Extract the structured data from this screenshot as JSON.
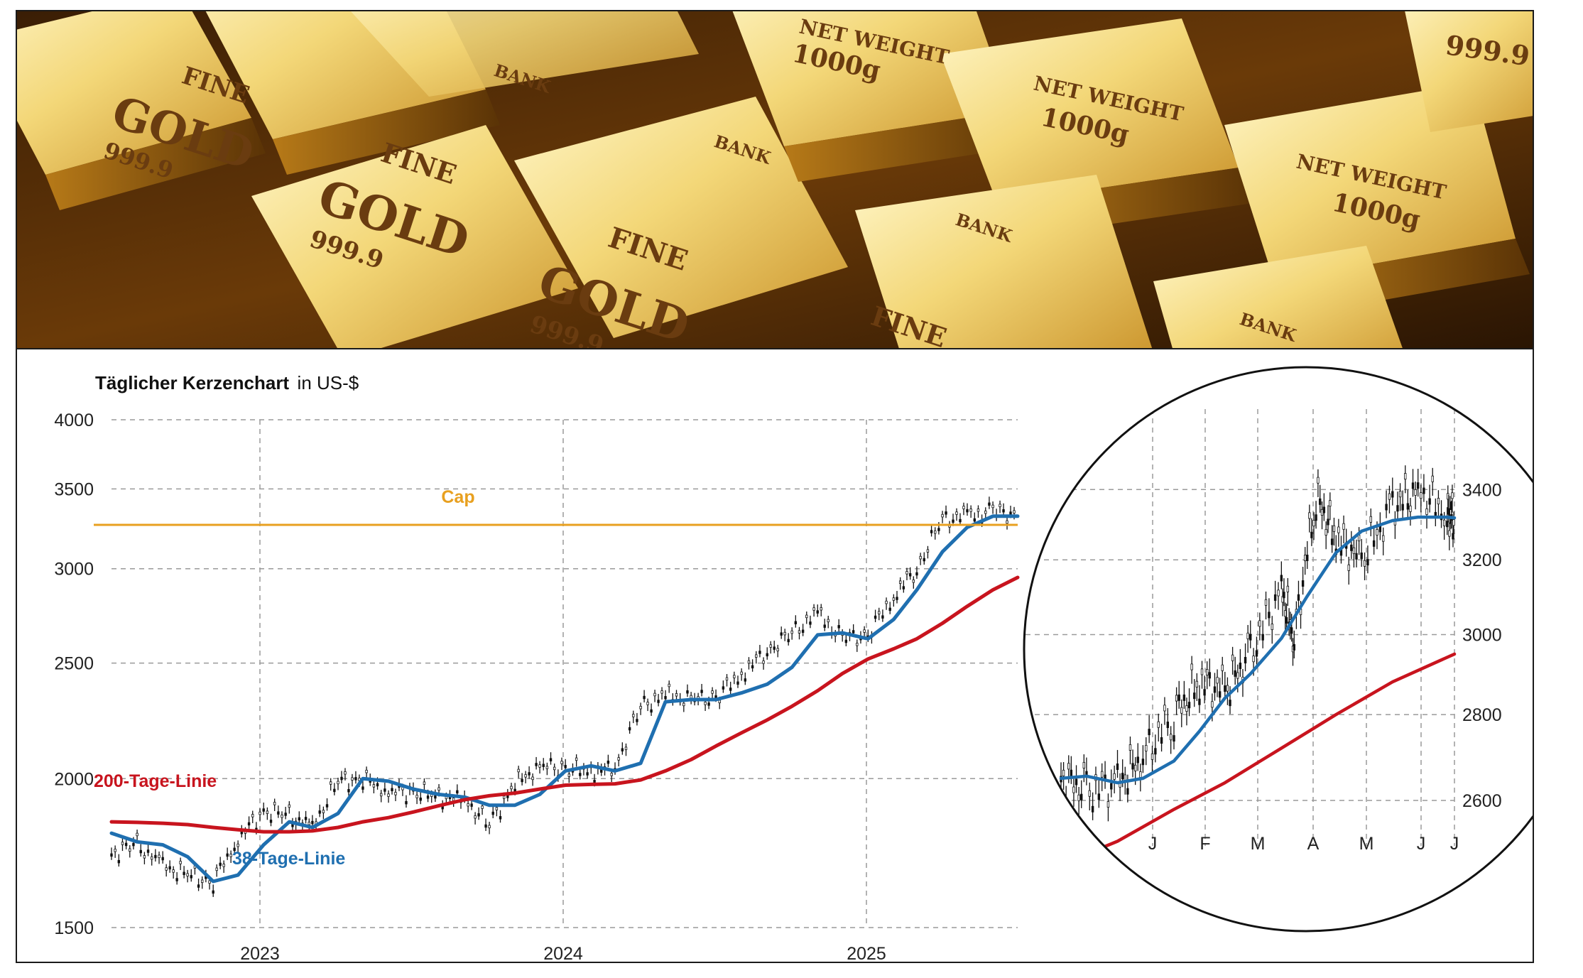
{
  "photo": {
    "bar_texts": [
      "FINE",
      "GOLD",
      "999.9",
      "BANK",
      "NET WEIGHT",
      "1000g"
    ]
  },
  "chart_data": [
    {
      "type": "line",
      "title": "Täglicher Kerzenchart",
      "title_unit": "in US-$",
      "xlabel": "",
      "ylabel": "",
      "y_scale": "log",
      "ylim": [
        1500,
        4000
      ],
      "y_ticks": [
        1500,
        2000,
        2500,
        3000,
        3500,
        4000
      ],
      "x_ticks": [
        "2023",
        "2024",
        "2025"
      ],
      "xlim": [
        "2022-07-01",
        "2025-07-01"
      ],
      "grid": true,
      "horizontal_line": {
        "name": "Cap",
        "value": 3265,
        "color": "#e8a020"
      },
      "series": [
        {
          "name": "",
          "kind": "candlestick-close",
          "color": "#111111",
          "x": [
            "2022-07-01",
            "2022-08-01",
            "2022-09-01",
            "2022-10-01",
            "2022-11-01",
            "2022-12-01",
            "2023-01-01",
            "2023-02-01",
            "2023-03-01",
            "2023-04-01",
            "2023-05-01",
            "2023-06-01",
            "2023-07-01",
            "2023-08-01",
            "2023-09-01",
            "2023-10-01",
            "2023-11-01",
            "2023-12-01",
            "2024-01-01",
            "2024-02-01",
            "2024-03-01",
            "2024-04-01",
            "2024-05-01",
            "2024-06-01",
            "2024-07-01",
            "2024-08-01",
            "2024-09-01",
            "2024-10-01",
            "2024-11-01",
            "2024-12-01",
            "2025-01-01",
            "2025-02-01",
            "2025-03-01",
            "2025-04-01",
            "2025-05-01",
            "2025-06-01",
            "2025-07-01"
          ],
          "values": [
            1730,
            1760,
            1690,
            1660,
            1640,
            1780,
            1880,
            1860,
            1820,
            1990,
            2000,
            1950,
            1950,
            1930,
            1920,
            1830,
            1980,
            2050,
            2040,
            2030,
            2040,
            2300,
            2350,
            2330,
            2340,
            2450,
            2560,
            2650,
            2750,
            2620,
            2640,
            2850,
            3000,
            3300,
            3320,
            3350,
            3330
          ]
        },
        {
          "name": "38-Tage-Linie",
          "color": "#1f6fb0",
          "x": [
            "2022-07-01",
            "2022-08-01",
            "2022-09-01",
            "2022-10-01",
            "2022-11-01",
            "2022-12-01",
            "2023-01-01",
            "2023-02-01",
            "2023-03-01",
            "2023-04-01",
            "2023-05-01",
            "2023-06-01",
            "2023-07-01",
            "2023-08-01",
            "2023-09-01",
            "2023-10-01",
            "2023-11-01",
            "2023-12-01",
            "2024-01-01",
            "2024-02-01",
            "2024-03-01",
            "2024-04-01",
            "2024-05-01",
            "2024-06-01",
            "2024-07-01",
            "2024-08-01",
            "2024-09-01",
            "2024-10-01",
            "2024-11-01",
            "2024-12-01",
            "2025-01-01",
            "2025-02-01",
            "2025-03-01",
            "2025-04-01",
            "2025-05-01",
            "2025-06-01",
            "2025-07-01"
          ],
          "values": [
            1800,
            1770,
            1760,
            1720,
            1640,
            1660,
            1760,
            1840,
            1820,
            1870,
            2000,
            1990,
            1960,
            1940,
            1930,
            1900,
            1900,
            1940,
            2030,
            2050,
            2030,
            2060,
            2320,
            2330,
            2330,
            2360,
            2400,
            2480,
            2640,
            2650,
            2620,
            2720,
            2880,
            3100,
            3250,
            3320,
            3320
          ]
        },
        {
          "name": "200-Tage-Linie",
          "color": "#c8141e",
          "x": [
            "2022-07-01",
            "2022-08-01",
            "2022-09-01",
            "2022-10-01",
            "2022-11-01",
            "2022-12-01",
            "2023-01-01",
            "2023-02-01",
            "2023-03-01",
            "2023-04-01",
            "2023-05-01",
            "2023-06-01",
            "2023-07-01",
            "2023-08-01",
            "2023-09-01",
            "2023-10-01",
            "2023-11-01",
            "2023-12-01",
            "2024-01-01",
            "2024-02-01",
            "2024-03-01",
            "2024-04-01",
            "2024-05-01",
            "2024-06-01",
            "2024-07-01",
            "2024-08-01",
            "2024-09-01",
            "2024-10-01",
            "2024-11-01",
            "2024-12-01",
            "2025-01-01",
            "2025-02-01",
            "2025-03-01",
            "2025-04-01",
            "2025-05-01",
            "2025-06-01",
            "2025-07-01"
          ],
          "values": [
            1840,
            1838,
            1835,
            1830,
            1820,
            1812,
            1805,
            1805,
            1808,
            1820,
            1840,
            1855,
            1875,
            1898,
            1920,
            1935,
            1945,
            1960,
            1975,
            1978,
            1980,
            1995,
            2030,
            2075,
            2130,
            2185,
            2240,
            2300,
            2370,
            2450,
            2520,
            2570,
            2620,
            2700,
            2790,
            2880,
            2950
          ]
        }
      ]
    },
    {
      "type": "line",
      "title": "",
      "y_scale": "log",
      "ylim": [
        2500,
        3600
      ],
      "y_ticks": [
        2600,
        2800,
        3000,
        3200,
        3400
      ],
      "x_ticks": [
        "J",
        "F",
        "M",
        "A",
        "M",
        "J",
        "J"
      ],
      "xlim": [
        "2024-12-01",
        "2025-07-05"
      ],
      "grid": true,
      "series": [
        {
          "name": "",
          "kind": "candlestick-close",
          "color": "#111111",
          "x": [
            "2024-12-01",
            "2024-12-15",
            "2025-01-01",
            "2025-01-15",
            "2025-02-01",
            "2025-02-15",
            "2025-03-01",
            "2025-03-15",
            "2025-04-01",
            "2025-04-08",
            "2025-04-20",
            "2025-05-01",
            "2025-05-15",
            "2025-06-01",
            "2025-06-15",
            "2025-07-01",
            "2025-07-05"
          ],
          "values": [
            2655,
            2620,
            2640,
            2700,
            2800,
            2880,
            2860,
            2950,
            3120,
            2990,
            3380,
            3260,
            3200,
            3350,
            3400,
            3330,
            3320
          ]
        },
        {
          "name": "",
          "color": "#1f6fb0",
          "x": [
            "2024-12-01",
            "2024-12-15",
            "2025-01-01",
            "2025-01-15",
            "2025-02-01",
            "2025-02-15",
            "2025-03-01",
            "2025-03-15",
            "2025-04-01",
            "2025-04-15",
            "2025-05-01",
            "2025-05-15",
            "2025-06-01",
            "2025-06-15",
            "2025-07-01",
            "2025-07-05"
          ],
          "values": [
            2650,
            2655,
            2640,
            2650,
            2690,
            2760,
            2840,
            2900,
            2990,
            3100,
            3220,
            3280,
            3310,
            3320,
            3320,
            3318
          ]
        },
        {
          "name": "",
          "color": "#c8141e",
          "x": [
            "2024-12-01",
            "2025-01-01",
            "2025-02-01",
            "2025-03-01",
            "2025-04-01",
            "2025-05-01",
            "2025-06-01",
            "2025-07-05"
          ],
          "values": [
            2460,
            2510,
            2580,
            2640,
            2720,
            2800,
            2880,
            2950
          ]
        }
      ]
    }
  ]
}
